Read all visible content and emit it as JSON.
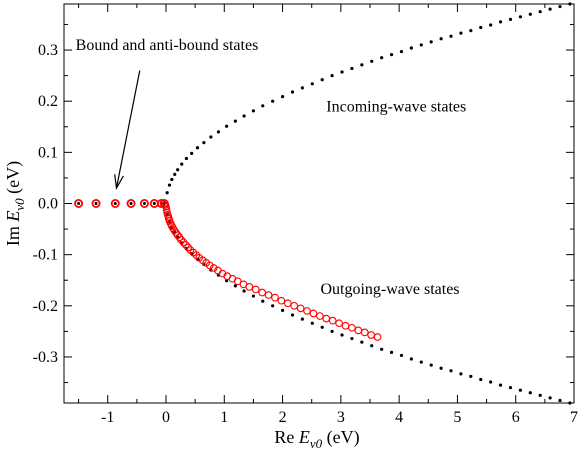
{
  "chart_data": {
    "type": "scatter",
    "title": "",
    "xlabel": "Re E_v0 (eV)",
    "ylabel": "Im E_v0 (eV)",
    "xlabel_parts": {
      "prefix": "Re ",
      "italic": "E",
      "sub": "v0",
      "suffix": " (eV)"
    },
    "ylabel_parts": {
      "prefix": "Im ",
      "italic": "E",
      "sub": "v0",
      "suffix": " (eV)"
    },
    "xlim": [
      -1.75,
      7
    ],
    "ylim": [
      -0.39,
      0.39
    ],
    "xticks": [
      -1,
      0,
      1,
      2,
      3,
      4,
      5,
      6,
      7
    ],
    "xtick_labels": [
      "-1",
      "0",
      "1",
      "2",
      "3",
      "4",
      "5",
      "6",
      "7"
    ],
    "yticks": [
      -0.3,
      -0.2,
      -0.1,
      0.0,
      0.1,
      0.2,
      0.3
    ],
    "ytick_labels": [
      "-0.3",
      "-0.2",
      "-0.1",
      "0.0",
      "0.1",
      "0.2",
      "0.3"
    ],
    "grid": false,
    "legend": "none",
    "annotations": [
      {
        "text": "Bound and anti-bound states",
        "x": -1.55,
        "y": 0.3,
        "arrow_from": [
          -0.45,
          0.26
        ],
        "arrow_to": [
          -0.85,
          0.03
        ]
      },
      {
        "text": "Incoming-wave states",
        "x": 2.75,
        "y": 0.18
      },
      {
        "text": "Outgoing-wave states",
        "x": 2.65,
        "y": -0.177
      }
    ],
    "colors": {
      "black_points": "#000000",
      "red_circles": "#ff0000"
    },
    "series": [
      {
        "name": "Incoming-wave states",
        "marker": "dot",
        "curve": "Im = 0.148 * sqrt(Re)",
        "x": [
          0.02,
          0.06,
          0.1,
          0.15,
          0.2,
          0.27,
          0.35,
          0.44,
          0.54,
          0.65,
          0.77,
          0.9,
          1.04,
          1.19,
          1.34,
          1.5,
          1.66,
          1.83,
          2.0,
          2.17,
          2.34,
          2.51,
          2.68,
          2.85,
          3.02,
          3.19,
          3.36,
          3.53,
          3.7,
          3.87,
          4.04,
          4.21,
          4.38,
          4.55,
          4.72,
          4.89,
          5.06,
          5.23,
          5.4,
          5.57,
          5.74,
          5.91,
          6.08,
          6.25,
          6.42,
          6.59,
          6.76,
          6.93
        ],
        "y": [
          0.021,
          0.036,
          0.047,
          0.057,
          0.066,
          0.077,
          0.088,
          0.098,
          0.109,
          0.119,
          0.13,
          0.14,
          0.151,
          0.161,
          0.171,
          0.181,
          0.191,
          0.2,
          0.209,
          0.218,
          0.226,
          0.234,
          0.242,
          0.25,
          0.257,
          0.264,
          0.271,
          0.278,
          0.285,
          0.291,
          0.297,
          0.304,
          0.31,
          0.316,
          0.322,
          0.327,
          0.333,
          0.338,
          0.344,
          0.349,
          0.355,
          0.36,
          0.365,
          0.37,
          0.375,
          0.38,
          0.385,
          0.39
        ]
      },
      {
        "name": "Outgoing-wave states",
        "marker": "dot",
        "curve": "Im = -0.148 * sqrt(Re)",
        "x": [
          0.02,
          0.06,
          0.1,
          0.15,
          0.2,
          0.27,
          0.35,
          0.44,
          0.54,
          0.65,
          0.77,
          0.9,
          1.04,
          1.19,
          1.34,
          1.5,
          1.66,
          1.83,
          2.0,
          2.17,
          2.34,
          2.51,
          2.68,
          2.85,
          3.02,
          3.19,
          3.36,
          3.53,
          3.7,
          3.87,
          4.04,
          4.21,
          4.38,
          4.55,
          4.72,
          4.89,
          5.06,
          5.23,
          5.4,
          5.57,
          5.74,
          5.91,
          6.08,
          6.25,
          6.42,
          6.59,
          6.76,
          6.93
        ],
        "y": [
          -0.021,
          -0.036,
          -0.047,
          -0.057,
          -0.066,
          -0.077,
          -0.088,
          -0.098,
          -0.109,
          -0.119,
          -0.13,
          -0.14,
          -0.151,
          -0.161,
          -0.171,
          -0.181,
          -0.191,
          -0.2,
          -0.209,
          -0.218,
          -0.226,
          -0.234,
          -0.242,
          -0.25,
          -0.257,
          -0.264,
          -0.271,
          -0.278,
          -0.285,
          -0.291,
          -0.297,
          -0.304,
          -0.31,
          -0.316,
          -0.322,
          -0.327,
          -0.333,
          -0.338,
          -0.344,
          -0.349,
          -0.355,
          -0.36,
          -0.365,
          -0.37,
          -0.375,
          -0.38,
          -0.385,
          -0.39
        ]
      },
      {
        "name": "Bound and anti-bound states",
        "marker": "dot-in-red-circle",
        "x": [
          -1.5,
          -1.2,
          -0.87,
          -0.6,
          -0.37,
          -0.2,
          -0.08,
          -0.03
        ],
        "y": [
          0,
          0,
          0,
          0,
          0,
          0,
          0,
          0
        ]
      },
      {
        "name": "Outgoing-wave states (red circles)",
        "marker": "red-circle",
        "x": [
          -0.01,
          0.0,
          0.01,
          0.02,
          0.03,
          0.04,
          0.05,
          0.06,
          0.08,
          0.1,
          0.12,
          0.14,
          0.17,
          0.2,
          0.23,
          0.26,
          0.3,
          0.34,
          0.38,
          0.42,
          0.47,
          0.52,
          0.57,
          0.63,
          0.69,
          0.75,
          0.82,
          0.89,
          0.97,
          1.05,
          1.14,
          1.23,
          1.33,
          1.43,
          1.54,
          1.65,
          1.76,
          1.87,
          1.98,
          2.09,
          2.2,
          2.31,
          2.42,
          2.53,
          2.64,
          2.75,
          2.86,
          2.97,
          3.08,
          3.19,
          3.3,
          3.41,
          3.52,
          3.63
        ],
        "y": [
          -0.003,
          -0.006,
          -0.012,
          -0.018,
          -0.022,
          -0.026,
          -0.03,
          -0.034,
          -0.039,
          -0.044,
          -0.048,
          -0.052,
          -0.057,
          -0.062,
          -0.066,
          -0.071,
          -0.076,
          -0.081,
          -0.086,
          -0.091,
          -0.096,
          -0.101,
          -0.106,
          -0.111,
          -0.116,
          -0.121,
          -0.126,
          -0.131,
          -0.137,
          -0.142,
          -0.147,
          -0.152,
          -0.158,
          -0.163,
          -0.168,
          -0.174,
          -0.179,
          -0.184,
          -0.19,
          -0.195,
          -0.2,
          -0.205,
          -0.21,
          -0.215,
          -0.22,
          -0.225,
          -0.229,
          -0.234,
          -0.239,
          -0.243,
          -0.248,
          -0.252,
          -0.257,
          -0.261
        ]
      }
    ]
  }
}
